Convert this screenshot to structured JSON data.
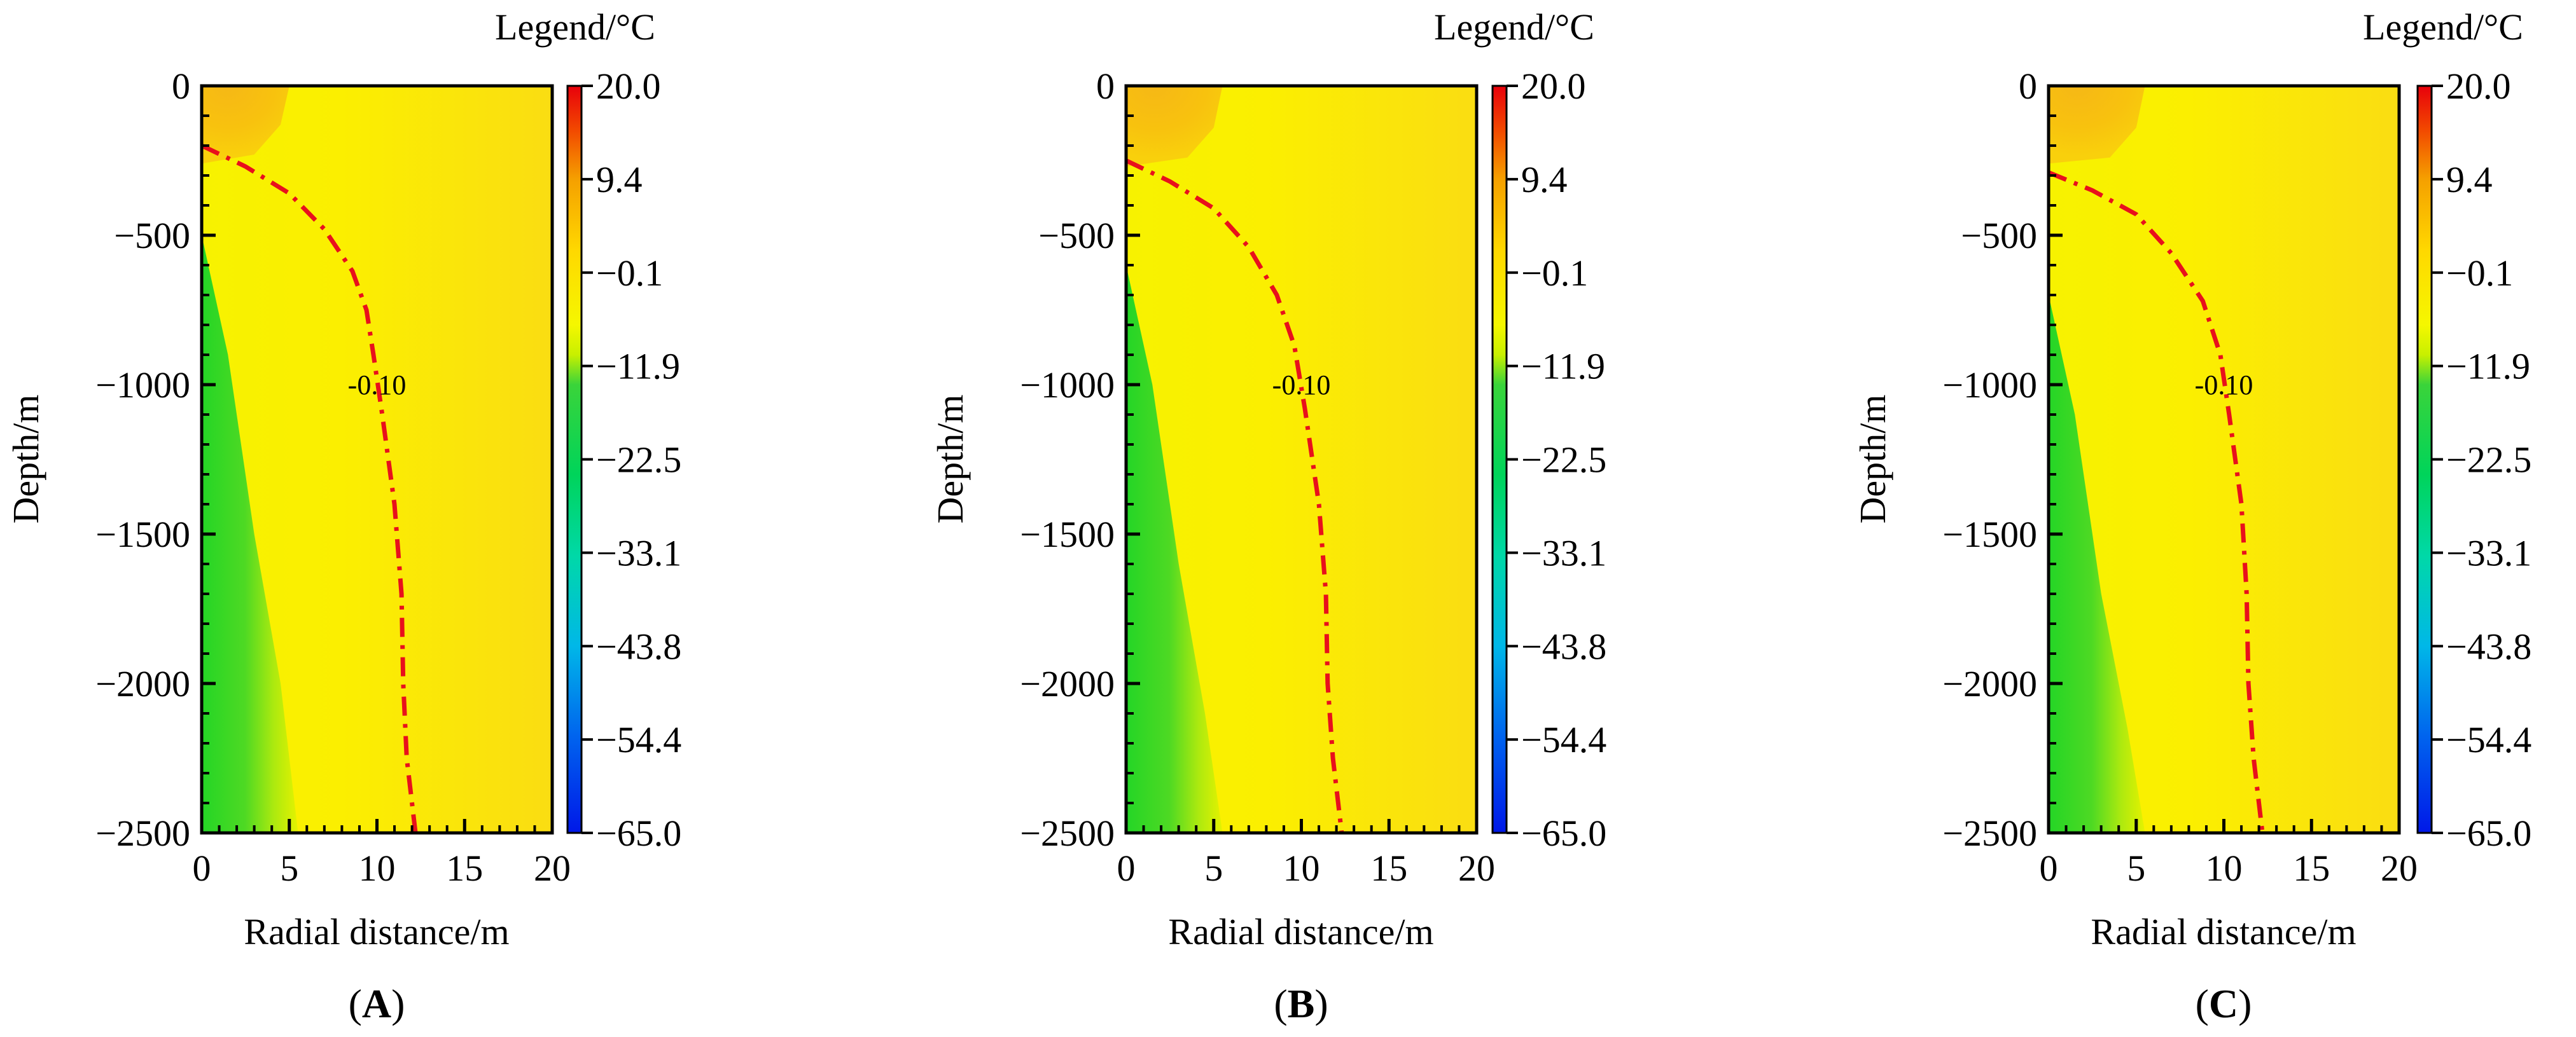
{
  "figure": {
    "description_labels": [
      "A",
      "B",
      "C"
    ]
  },
  "chart_data": [
    {
      "type": "heatmap",
      "panel_label": "A",
      "title": "",
      "xlabel": "Radial distance/m",
      "ylabel": "Depth/m",
      "xlim": [
        0,
        20
      ],
      "ylim": [
        -2500,
        0
      ],
      "x_ticks": [
        0,
        5,
        10,
        15,
        20
      ],
      "y_ticks": [
        0,
        -500,
        -1000,
        -1500,
        -2000,
        -2500
      ],
      "colorbar": {
        "title": "Legend/°C",
        "range": [
          -65.0,
          20.0
        ],
        "tick_labels": [
          "20.0",
          "9.4",
          "−0.1",
          "−11.9",
          "−22.5",
          "−33.1",
          "−43.8",
          "−54.4",
          "−65.0"
        ]
      },
      "isotherm": {
        "label": "-0.10",
        "value": -0.1,
        "label_point": [
          10,
          -1000
        ],
        "points": [
          [
            0,
            -200
          ],
          [
            2.5,
            -270
          ],
          [
            5,
            -360
          ],
          [
            7,
            -480
          ],
          [
            8.6,
            -620
          ],
          [
            9.4,
            -750
          ],
          [
            9.8,
            -900
          ],
          [
            10.3,
            -1100
          ],
          [
            11,
            -1400
          ],
          [
            11.4,
            -1700
          ],
          [
            11.5,
            -2000
          ],
          [
            11.7,
            -2250
          ],
          [
            12.2,
            -2500
          ]
        ]
      },
      "cold_zone_points": [
        [
          0,
          -500
        ],
        [
          1.5,
          -900
        ],
        [
          3,
          -1500
        ],
        [
          4.5,
          -2000
        ],
        [
          5.5,
          -2500
        ]
      ],
      "warm_zone_points": [
        [
          0,
          0
        ],
        [
          5,
          0
        ],
        [
          4.5,
          -130
        ],
        [
          3,
          -230
        ],
        [
          0,
          -260
        ]
      ]
    },
    {
      "type": "heatmap",
      "panel_label": "B",
      "title": "",
      "xlabel": "Radial distance/m",
      "ylabel": "Depth/m",
      "xlim": [
        0,
        20
      ],
      "ylim": [
        -2500,
        0
      ],
      "x_ticks": [
        0,
        5,
        10,
        15,
        20
      ],
      "y_ticks": [
        0,
        -500,
        -1000,
        -1500,
        -2000,
        -2500
      ],
      "colorbar": {
        "title": "Legend/°C",
        "range": [
          -65.0,
          20.0
        ],
        "tick_labels": [
          "20.0",
          "9.4",
          "−0.1",
          "−11.9",
          "−22.5",
          "−33.1",
          "−43.8",
          "−54.4",
          "−65.0"
        ]
      },
      "isotherm": {
        "label": "-0.10",
        "value": -0.1,
        "label_point": [
          10,
          -1000
        ],
        "points": [
          [
            0,
            -250
          ],
          [
            2.5,
            -320
          ],
          [
            5,
            -410
          ],
          [
            7,
            -540
          ],
          [
            8.6,
            -700
          ],
          [
            9.6,
            -870
          ],
          [
            10.2,
            -1080
          ],
          [
            11,
            -1400
          ],
          [
            11.4,
            -1700
          ],
          [
            11.5,
            -2000
          ],
          [
            11.8,
            -2250
          ],
          [
            12.3,
            -2500
          ]
        ]
      },
      "cold_zone_points": [
        [
          0,
          -600
        ],
        [
          1.5,
          -1000
        ],
        [
          3,
          -1600
        ],
        [
          4.5,
          -2100
        ],
        [
          5.5,
          -2500
        ]
      ],
      "warm_zone_points": [
        [
          0,
          0
        ],
        [
          5.5,
          0
        ],
        [
          5,
          -140
        ],
        [
          3.5,
          -240
        ],
        [
          0,
          -270
        ]
      ]
    },
    {
      "type": "heatmap",
      "panel_label": "C",
      "title": "",
      "xlabel": "Radial distance/m",
      "ylabel": "Depth/m",
      "xlim": [
        0,
        20
      ],
      "ylim": [
        -2500,
        0
      ],
      "x_ticks": [
        0,
        5,
        10,
        15,
        20
      ],
      "y_ticks": [
        0,
        -500,
        -1000,
        -1500,
        -2000,
        -2500
      ],
      "colorbar": {
        "title": "Legend/°C",
        "range": [
          -65.0,
          20.0
        ],
        "tick_labels": [
          "20.0",
          "9.4",
          "−0.1",
          "−11.9",
          "−22.5",
          "−33.1",
          "−43.8",
          "−54.4",
          "−65.0"
        ]
      },
      "isotherm": {
        "label": "-0.10",
        "value": -0.1,
        "label_point": [
          10,
          -1000
        ],
        "points": [
          [
            0,
            -290
          ],
          [
            2.5,
            -350
          ],
          [
            5,
            -430
          ],
          [
            7,
            -560
          ],
          [
            8.8,
            -720
          ],
          [
            9.8,
            -900
          ],
          [
            10.3,
            -1100
          ],
          [
            11,
            -1400
          ],
          [
            11.3,
            -1700
          ],
          [
            11.4,
            -2000
          ],
          [
            11.7,
            -2250
          ],
          [
            12.2,
            -2500
          ]
        ]
      },
      "cold_zone_points": [
        [
          0,
          -700
        ],
        [
          1.5,
          -1100
        ],
        [
          3,
          -1700
        ],
        [
          4.5,
          -2150
        ],
        [
          5.5,
          -2500
        ]
      ],
      "warm_zone_points": [
        [
          0,
          0
        ],
        [
          5.5,
          0
        ],
        [
          5,
          -140
        ],
        [
          3.5,
          -240
        ],
        [
          0,
          -260
        ]
      ]
    }
  ]
}
